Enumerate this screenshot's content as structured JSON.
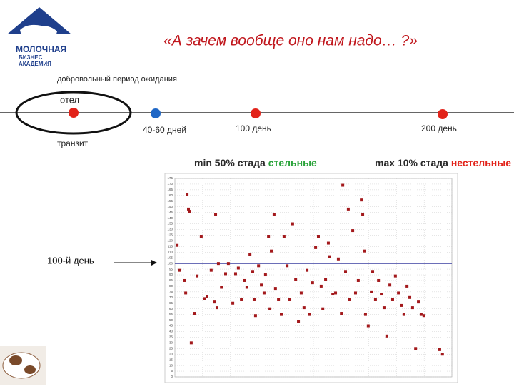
{
  "logo": {
    "line1": "МОЛОЧНАЯ",
    "line2": "БИЗНЕС",
    "line3": "АКАДЕМИЯ"
  },
  "header": {
    "title": "«А зачем вообще оно нам надо… ?»"
  },
  "timeline": {
    "period": "добровольный период ожидания",
    "calving": "отел",
    "transit": "транзит",
    "mark1": "40-60 дней",
    "mark2": "100 день",
    "mark3": "200 день"
  },
  "targets": {
    "min_prefix": "min 50% стада ",
    "min_word": "стельные",
    "max_prefix": "max 10% стада ",
    "max_word": "нестельные"
  },
  "pointer": "100-й день",
  "chart_data": {
    "type": "scatter",
    "color": "#a3191c",
    "line_color": "#3a3fa0",
    "reference": 100,
    "xlim": [
      0,
      100
    ],
    "ylim": [
      0,
      175
    ],
    "yticks": [
      0,
      5,
      10,
      15,
      20,
      25,
      30,
      35,
      40,
      45,
      50,
      55,
      60,
      65,
      70,
      75,
      80,
      85,
      90,
      95,
      100,
      105,
      110,
      115,
      120,
      125,
      130,
      135,
      140,
      145,
      150,
      155,
      160,
      165,
      170,
      175
    ],
    "grid": true,
    "x": [
      0.8,
      4.4,
      4.9,
      5.4,
      1.8,
      3.4,
      3.9,
      5.9,
      7.0,
      8.0,
      9.5,
      10.6,
      11.6,
      13.1,
      14.7,
      14.2,
      15.2,
      15.7,
      16.8,
      18.3,
      19.3,
      20.9,
      21.9,
      22.9,
      24.0,
      25.0,
      26.0,
      27.1,
      28.1,
      28.6,
      29.1,
      30.2,
      31.2,
      32.2,
      32.7,
      33.8,
      34.3,
      34.8,
      35.8,
      36.3,
      37.4,
      38.4,
      39.4,
      40.5,
      41.5,
      42.5,
      43.6,
      44.6,
      45.6,
      46.6,
      47.7,
      48.7,
      49.7,
      50.8,
      51.8,
      52.8,
      53.4,
      54.4,
      55.4,
      55.9,
      57.0,
      58.0,
      59.0,
      60.1,
      60.6,
      61.6,
      62.6,
      63.1,
      64.2,
      65.2,
      66.2,
      67.3,
      67.8,
      68.3,
      68.8,
      69.8,
      70.9,
      71.4,
      72.4,
      73.5,
      74.5,
      75.5,
      76.5,
      77.6,
      78.6,
      79.6,
      80.7,
      81.7,
      82.7,
      83.8,
      84.8,
      85.8,
      86.9,
      87.9,
      88.9,
      89.9,
      95.6,
      96.6
    ],
    "values": [
      116,
      161,
      148,
      146,
      94,
      85,
      74,
      30,
      56,
      89,
      124,
      69,
      71,
      94,
      143,
      66,
      61,
      100,
      79,
      91,
      100,
      65,
      91,
      96,
      68,
      85,
      79,
      108,
      93,
      68,
      54,
      98,
      81,
      74,
      90,
      124,
      60,
      111,
      143,
      78,
      68,
      55,
      124,
      98,
      68,
      135,
      86,
      49,
      74,
      61,
      94,
      55,
      83,
      114,
      124,
      80,
      60,
      86,
      118,
      106,
      73,
      74,
      104,
      56,
      169,
      93,
      148,
      68,
      129,
      74,
      85,
      156,
      143,
      111,
      55,
      45,
      75,
      93,
      68,
      85,
      73,
      61,
      36,
      81,
      68,
      89,
      74,
      63,
      55,
      80,
      70,
      61,
      25,
      66,
      55,
      54,
      24,
      20
    ]
  }
}
